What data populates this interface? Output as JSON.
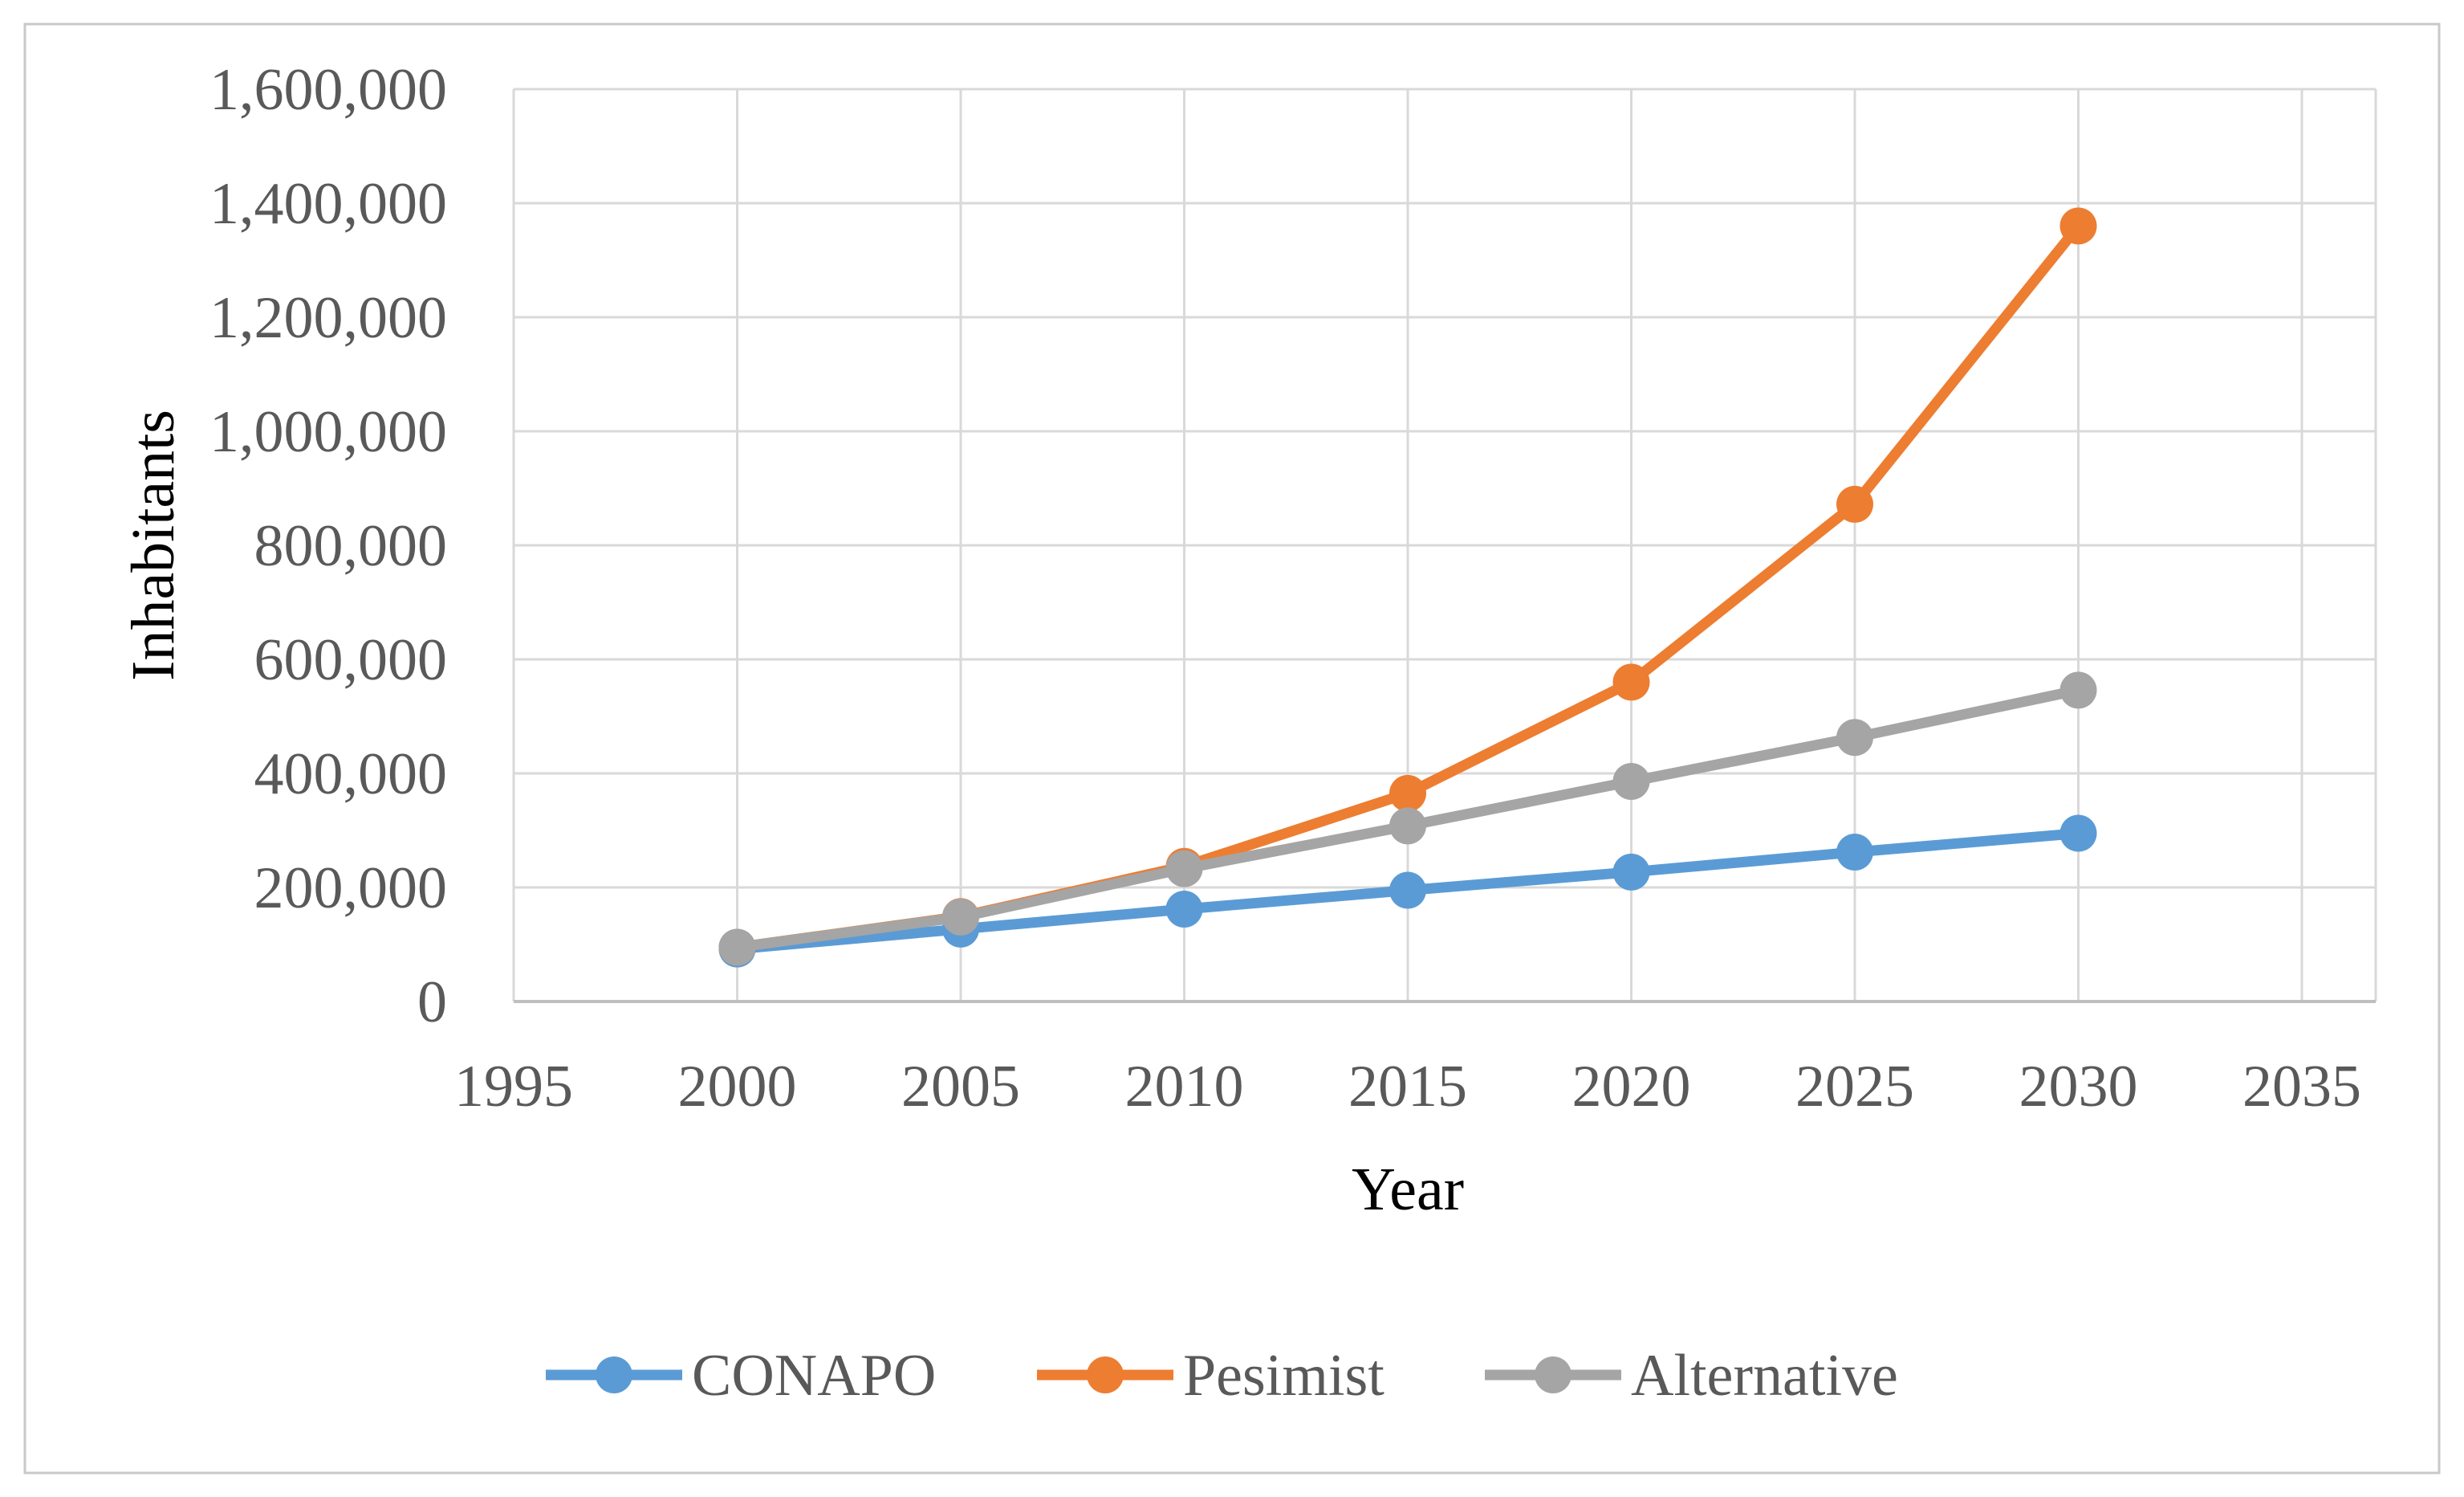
{
  "figure": {
    "background": "#FFFFFF",
    "border_color": "#C9C9C9"
  },
  "chart_data": {
    "type": "line",
    "title": "",
    "xlabel": "Year",
    "ylabel": "Inhabitants",
    "x": [
      2000,
      2005,
      2010,
      2015,
      2020,
      2025,
      2030
    ],
    "series": [
      {
        "name": "CONAPO",
        "color": "#5B9BD5",
        "values": [
          92000,
          127000,
          162000,
          195000,
          227000,
          262000,
          295000
        ]
      },
      {
        "name": "Pesimist",
        "color": "#ED7D31",
        "values": [
          95000,
          149000,
          237000,
          365000,
          560000,
          872000,
          1360000
        ]
      },
      {
        "name": "Alternative",
        "color": "#A5A5A5",
        "values": [
          95000,
          148000,
          233000,
          308000,
          386000,
          463000,
          546000
        ]
      }
    ],
    "xlim": [
      1995,
      2035
    ],
    "ylim": [
      0,
      1600000
    ],
    "x_ticks": [
      1995,
      2000,
      2005,
      2010,
      2015,
      2020,
      2025,
      2030,
      2035
    ],
    "x_tick_labels": [
      "1995",
      "2000",
      "2005",
      "2010",
      "2015",
      "2020",
      "2025",
      "2030",
      "2035"
    ],
    "y_ticks": [
      0,
      200000,
      400000,
      600000,
      800000,
      1000000,
      1200000,
      1400000,
      1600000
    ],
    "y_tick_labels": [
      "0",
      "200,000",
      "400,000",
      "600,000",
      "800,000",
      "1,000,000",
      "1,200,000",
      "1,400,000",
      "1,600,000"
    ],
    "grid": true,
    "legend_position": "bottom",
    "marker": "circle",
    "colors": {
      "grid": "#D9D9D9",
      "axis_line": "#BFBFBF",
      "text": "#595959"
    }
  }
}
